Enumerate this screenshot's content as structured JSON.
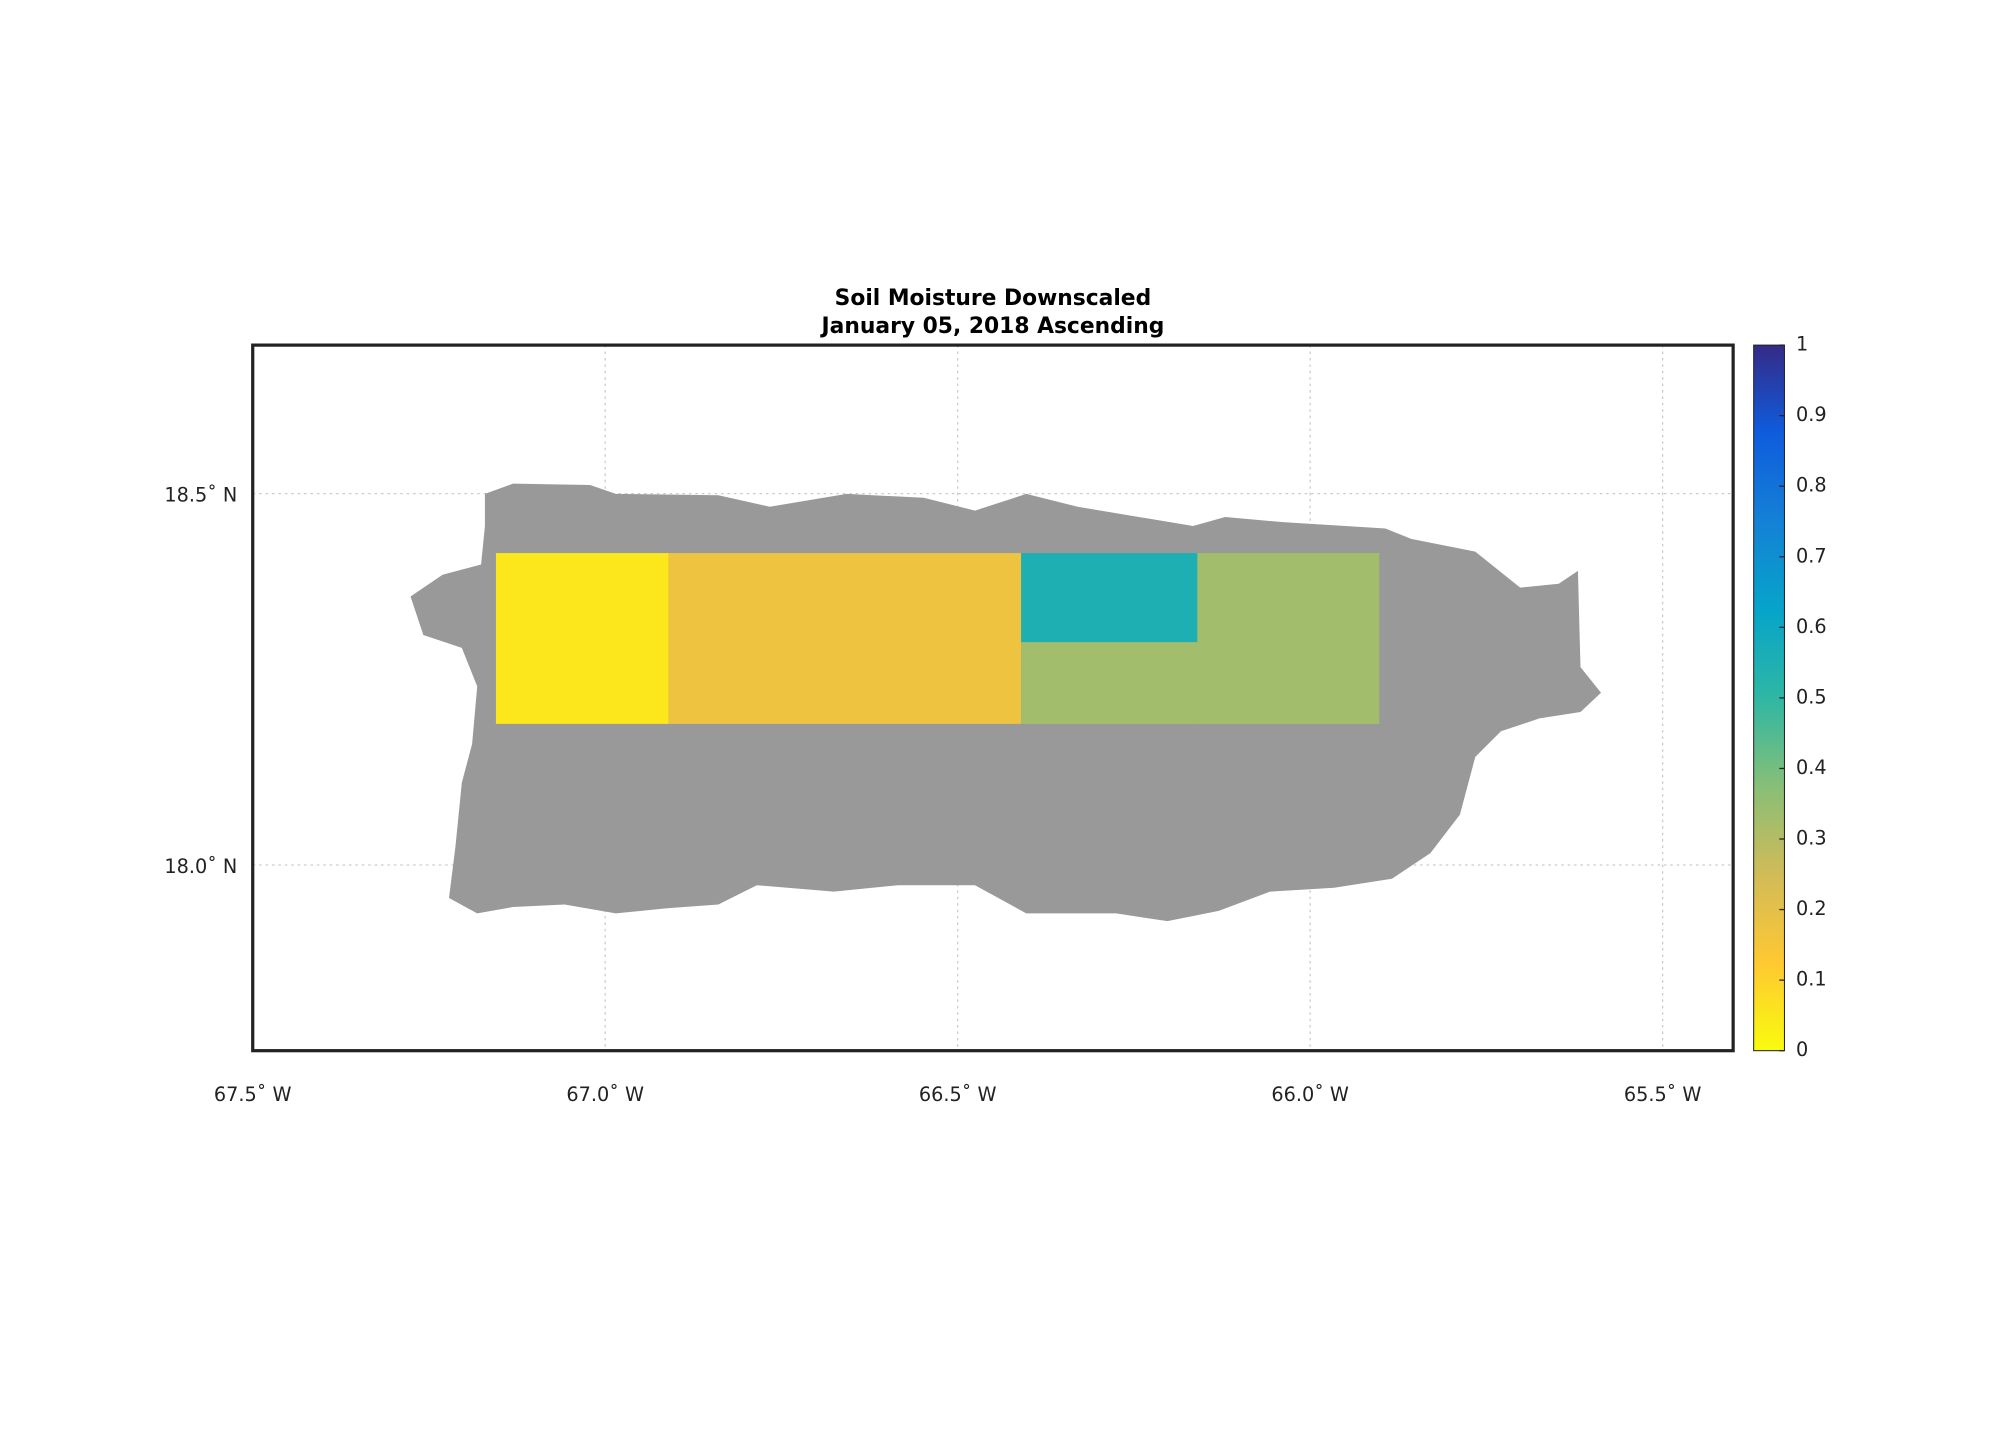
{
  "map": {
    "title": "Soil Moisture Downscaled",
    "subtitle": "January 05, 2018 Ascending",
    "xlim": [
      -67.5,
      -65.4
    ],
    "ylim": [
      17.75,
      18.7
    ],
    "xticks": [
      {
        "value": -67.5,
        "label": "67.5˚ W"
      },
      {
        "value": -67.0,
        "label": "67.0˚ W"
      },
      {
        "value": -66.5,
        "label": "66.5˚ W"
      },
      {
        "value": -66.0,
        "label": "66.0˚ W"
      },
      {
        "value": -65.5,
        "label": "65.5˚ W"
      }
    ],
    "yticks": [
      {
        "value": 18.0,
        "label": "18.0˚ N"
      },
      {
        "value": 18.5,
        "label": "18.5˚ N"
      }
    ],
    "grid": true,
    "colormap": "parula",
    "clim": [
      0,
      1
    ],
    "colorbar_ticks": [
      0,
      0.1,
      0.2,
      0.3,
      0.4,
      0.5,
      0.6,
      0.7,
      0.8,
      0.9,
      1
    ],
    "cells": [
      {
        "lon": [
          -67.155,
          -66.91
        ],
        "lat": [
          18.19,
          18.42
        ],
        "value": 0.05
      },
      {
        "lon": [
          -66.91,
          -66.41
        ],
        "lat": [
          18.19,
          18.42
        ],
        "value": 0.17
      },
      {
        "lon": [
          -66.41,
          -66.16
        ],
        "lat": [
          18.3,
          18.42
        ],
        "value": 0.55
      },
      {
        "lon": [
          -66.41,
          -66.16
        ],
        "lat": [
          18.19,
          18.3
        ],
        "value": 0.33
      },
      {
        "lon": [
          -66.16,
          -65.902
        ],
        "lat": [
          18.19,
          18.42
        ],
        "value": 0.33
      }
    ]
  }
}
